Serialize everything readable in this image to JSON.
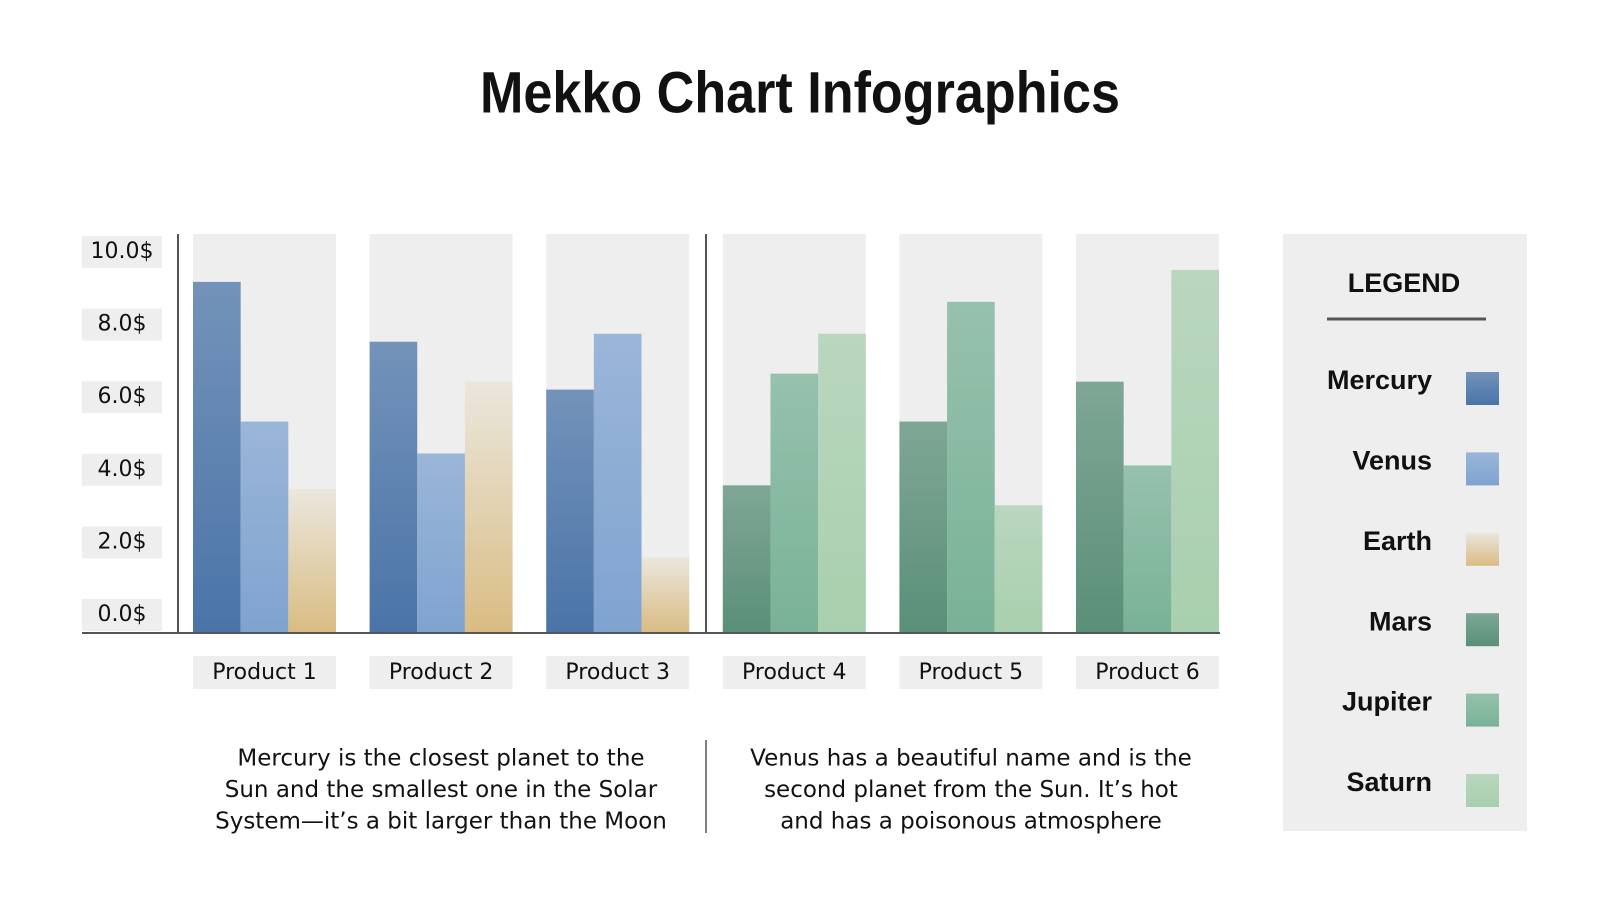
{
  "chart_data": {
    "type": "bar",
    "title": "Mekko Chart Infographics",
    "categories": [
      "Product 1",
      "Product 2",
      "Product 3",
      "Product 4",
      "Product 5",
      "Product 6"
    ],
    "series": [
      {
        "name": "Mercury",
        "color": "#4a74a8",
        "values": [
          8.8,
          7.3,
          6.1,
          null,
          null,
          null
        ]
      },
      {
        "name": "Venus",
        "color": "#7fa3d0",
        "values": [
          5.3,
          4.5,
          7.5,
          null,
          null,
          null
        ]
      },
      {
        "name": "Earth",
        "color": "#d9bc82",
        "values": [
          3.6,
          6.3,
          1.9,
          null,
          null,
          null
        ]
      },
      {
        "name": "Mars",
        "color": "#5a8f78",
        "values": [
          null,
          null,
          null,
          3.7,
          5.3,
          6.3
        ]
      },
      {
        "name": "Jupiter",
        "color": "#79b297",
        "values": [
          null,
          null,
          null,
          6.5,
          8.3,
          4.2
        ]
      },
      {
        "name": "Saturn",
        "color": "#a8cfae",
        "values": [
          null,
          null,
          null,
          7.5,
          3.2,
          9.1
        ]
      }
    ],
    "ylim": [
      0,
      10
    ],
    "yticks": [
      {
        "value": 0,
        "label": "0.0$"
      },
      {
        "value": 2,
        "label": "2.0$"
      },
      {
        "value": 4,
        "label": "4.0$"
      },
      {
        "value": 6,
        "label": "6.0$"
      },
      {
        "value": 8,
        "label": "8.0$"
      },
      {
        "value": 10,
        "label": "10.0$"
      }
    ],
    "legend_title": "LEGEND"
  },
  "descriptions": [
    [
      "Mercury is the closest planet to the",
      "Sun and the smallest one in the Solar",
      "System—it’s a bit larger than the Moon"
    ],
    [
      "Venus has a beautiful name and is the",
      "second planet from the Sun. It’s hot",
      "and has a poisonous atmosphere"
    ]
  ]
}
